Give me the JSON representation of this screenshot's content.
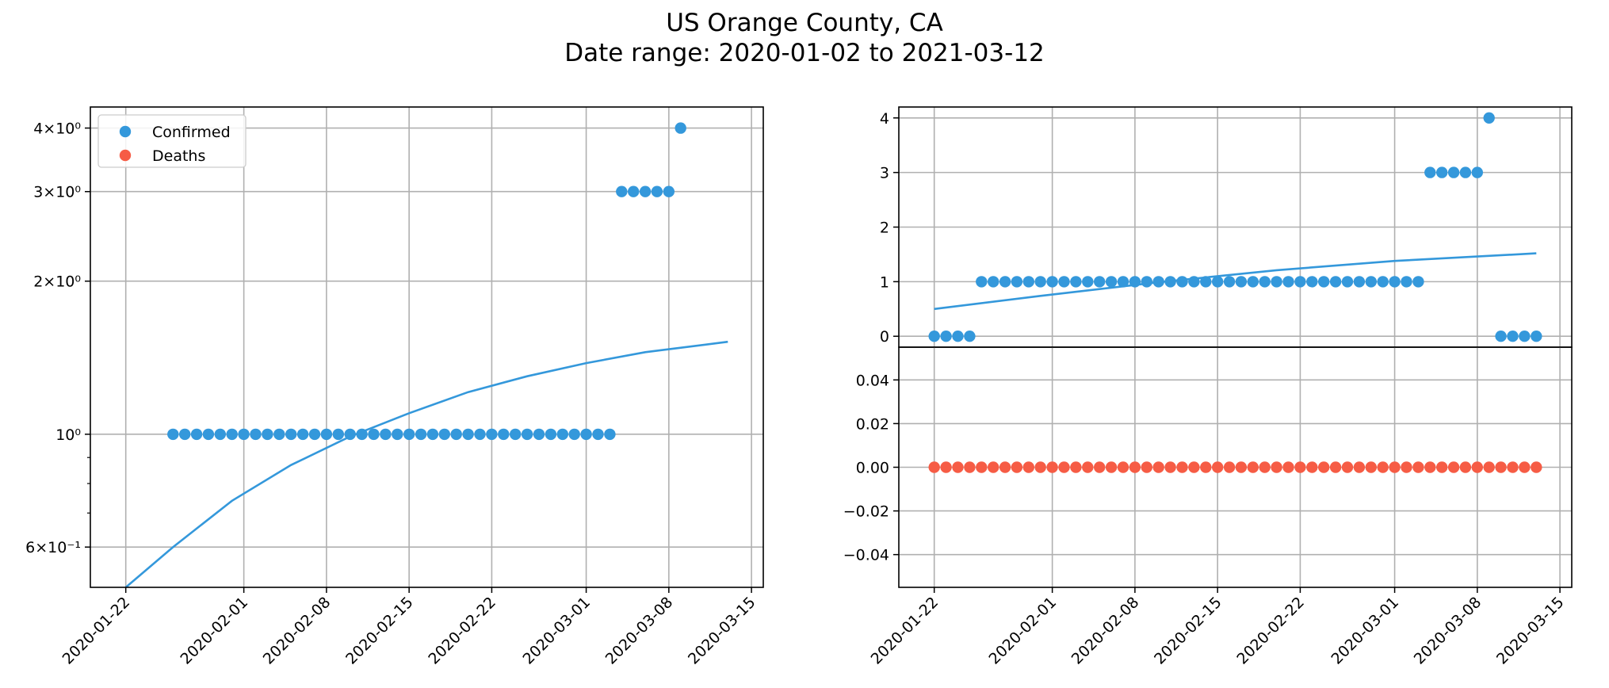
{
  "figure": {
    "title_line1": "US Orange County, CA",
    "title_line2": "Date range: 2020-01-02 to 2021-03-12"
  },
  "colors": {
    "confirmed": "#3498db",
    "deaths": "#f65c45",
    "grid": "#b0b0b0",
    "axis": "#000000"
  },
  "x_ticks": [
    "2020-01-22",
    "2020-02-01",
    "2020-02-08",
    "2020-02-15",
    "2020-02-22",
    "2020-03-01",
    "2020-03-08",
    "2020-03-15"
  ],
  "chart_data": [
    {
      "type": "scatter",
      "panel": "left",
      "yscale": "log",
      "ylim": [
        0.5,
        4.4
      ],
      "xlim": [
        "2020-01-19",
        "2020-03-16"
      ],
      "y_ticks": [
        {
          "value": 0.6,
          "label": "6×10⁻¹"
        },
        {
          "value": 1,
          "label": "10⁰"
        },
        {
          "value": 2,
          "label": "2×10⁰"
        },
        {
          "value": 3,
          "label": "3×10⁰"
        },
        {
          "value": 4,
          "label": "4×10⁰"
        }
      ],
      "legend": {
        "placement": "top-left",
        "entries": [
          "Confirmed",
          "Deaths"
        ]
      },
      "grid": true,
      "series": [
        {
          "name": "Confirmed",
          "kind": "points",
          "x": [
            "2020-01-26",
            "2020-01-27",
            "2020-01-28",
            "2020-01-29",
            "2020-01-30",
            "2020-01-31",
            "2020-02-01",
            "2020-02-02",
            "2020-02-03",
            "2020-02-04",
            "2020-02-05",
            "2020-02-06",
            "2020-02-07",
            "2020-02-08",
            "2020-02-09",
            "2020-02-10",
            "2020-02-11",
            "2020-02-12",
            "2020-02-13",
            "2020-02-14",
            "2020-02-15",
            "2020-02-16",
            "2020-02-17",
            "2020-02-18",
            "2020-02-19",
            "2020-02-20",
            "2020-02-21",
            "2020-02-22",
            "2020-02-23",
            "2020-02-24",
            "2020-02-25",
            "2020-02-26",
            "2020-02-27",
            "2020-02-28",
            "2020-02-29",
            "2020-03-01",
            "2020-03-02",
            "2020-03-03",
            "2020-03-04",
            "2020-03-05",
            "2020-03-06",
            "2020-03-07",
            "2020-03-08",
            "2020-03-09"
          ],
          "y": [
            1,
            1,
            1,
            1,
            1,
            1,
            1,
            1,
            1,
            1,
            1,
            1,
            1,
            1,
            1,
            1,
            1,
            1,
            1,
            1,
            1,
            1,
            1,
            1,
            1,
            1,
            1,
            1,
            1,
            1,
            1,
            1,
            1,
            1,
            1,
            1,
            1,
            1,
            3,
            3,
            3,
            3,
            3,
            4
          ]
        },
        {
          "kind": "fit-line",
          "x": [
            "2020-01-22",
            "2020-01-26",
            "2020-01-31",
            "2020-02-05",
            "2020-02-10",
            "2020-02-15",
            "2020-02-20",
            "2020-02-25",
            "2020-03-01",
            "2020-03-06",
            "2020-03-13"
          ],
          "y": [
            0.5,
            0.6,
            0.74,
            0.87,
            0.99,
            1.1,
            1.21,
            1.3,
            1.38,
            1.45,
            1.52
          ]
        }
      ]
    },
    {
      "type": "scatter",
      "panel": "top-right",
      "yscale": "linear",
      "ylim": [
        -0.2,
        4.2
      ],
      "xlim": [
        "2020-01-19",
        "2020-03-16"
      ],
      "y_ticks": [
        {
          "value": 0,
          "label": "0"
        },
        {
          "value": 1,
          "label": "1"
        },
        {
          "value": 2,
          "label": "2"
        },
        {
          "value": 3,
          "label": "3"
        },
        {
          "value": 4,
          "label": "4"
        }
      ],
      "grid": true,
      "series": [
        {
          "name": "Confirmed",
          "kind": "points",
          "x": [
            "2020-01-22",
            "2020-01-23",
            "2020-01-24",
            "2020-01-25",
            "2020-01-26",
            "2020-01-27",
            "2020-01-28",
            "2020-01-29",
            "2020-01-30",
            "2020-01-31",
            "2020-02-01",
            "2020-02-02",
            "2020-02-03",
            "2020-02-04",
            "2020-02-05",
            "2020-02-06",
            "2020-02-07",
            "2020-02-08",
            "2020-02-09",
            "2020-02-10",
            "2020-02-11",
            "2020-02-12",
            "2020-02-13",
            "2020-02-14",
            "2020-02-15",
            "2020-02-16",
            "2020-02-17",
            "2020-02-18",
            "2020-02-19",
            "2020-02-20",
            "2020-02-21",
            "2020-02-22",
            "2020-02-23",
            "2020-02-24",
            "2020-02-25",
            "2020-02-26",
            "2020-02-27",
            "2020-02-28",
            "2020-02-29",
            "2020-03-01",
            "2020-03-02",
            "2020-03-03",
            "2020-03-04",
            "2020-03-05",
            "2020-03-06",
            "2020-03-07",
            "2020-03-08",
            "2020-03-09",
            "2020-03-10",
            "2020-03-11",
            "2020-03-12",
            "2020-03-13"
          ],
          "y": [
            0,
            0,
            0,
            0,
            1,
            1,
            1,
            1,
            1,
            1,
            1,
            1,
            1,
            1,
            1,
            1,
            1,
            1,
            1,
            1,
            1,
            1,
            1,
            1,
            1,
            1,
            1,
            1,
            1,
            1,
            1,
            1,
            1,
            1,
            1,
            1,
            1,
            1,
            1,
            1,
            1,
            1,
            3,
            3,
            3,
            3,
            3,
            4,
            0,
            0,
            0,
            0
          ]
        },
        {
          "kind": "fit-line",
          "x": [
            "2020-01-22",
            "2020-01-31",
            "2020-02-10",
            "2020-02-20",
            "2020-03-01",
            "2020-03-13"
          ],
          "y": [
            0.5,
            0.74,
            0.99,
            1.21,
            1.38,
            1.52
          ]
        }
      ]
    },
    {
      "type": "scatter",
      "panel": "bottom-right",
      "yscale": "linear",
      "ylim": [
        -0.055,
        0.055
      ],
      "xlim": [
        "2020-01-19",
        "2020-03-16"
      ],
      "y_ticks": [
        {
          "value": -0.04,
          "label": "−0.04"
        },
        {
          "value": -0.02,
          "label": "−0.02"
        },
        {
          "value": 0,
          "label": "0.00"
        },
        {
          "value": 0.02,
          "label": "0.02"
        },
        {
          "value": 0.04,
          "label": "0.04"
        }
      ],
      "grid": true,
      "series": [
        {
          "name": "Deaths",
          "kind": "points",
          "x_range": [
            "2020-01-22",
            "2020-03-13"
          ],
          "y_constant": 0
        }
      ]
    }
  ]
}
